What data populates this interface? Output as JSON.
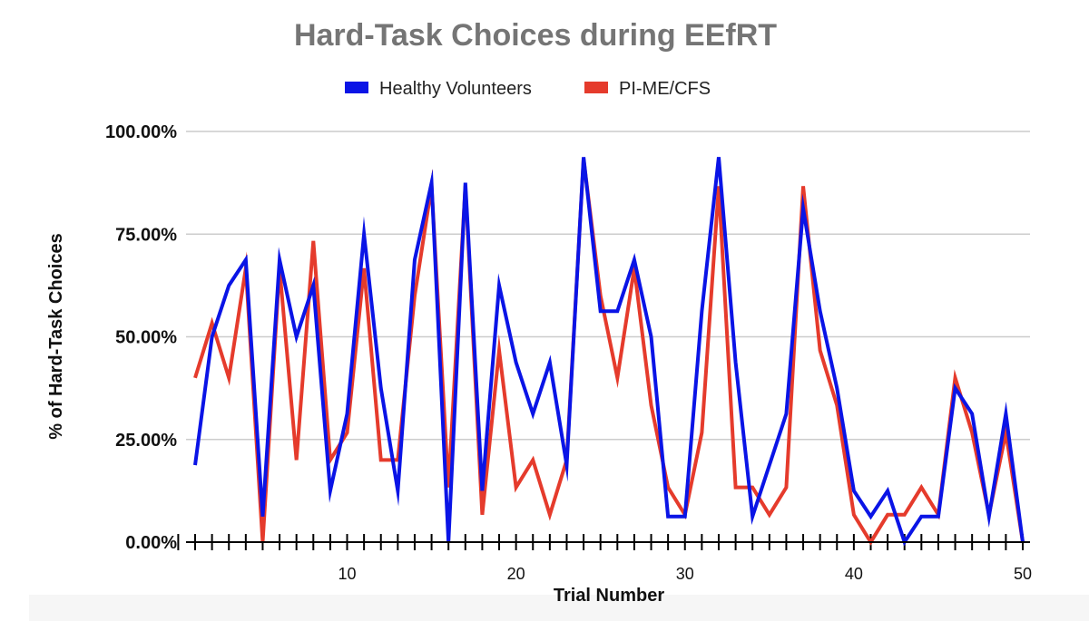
{
  "chart_data": {
    "type": "line",
    "title": "Hard-Task Choices during EEfRT",
    "xlabel": "Trial Number",
    "ylabel": "% of Hard-Task Choices",
    "xlim": [
      1,
      50
    ],
    "ylim": [
      0,
      100
    ],
    "x_ticks": [
      10,
      20,
      30,
      40,
      50
    ],
    "y_ticks": [
      "0.00%",
      "25.00%",
      "50.00%",
      "75.00%",
      "100.00%"
    ],
    "y_tick_values": [
      0,
      25,
      50,
      75,
      100
    ],
    "grid": true,
    "legend_position": "top-center",
    "x": [
      1,
      2,
      3,
      4,
      5,
      6,
      7,
      8,
      9,
      10,
      11,
      12,
      13,
      14,
      15,
      16,
      17,
      18,
      19,
      20,
      21,
      22,
      23,
      24,
      25,
      26,
      27,
      28,
      29,
      30,
      31,
      32,
      33,
      34,
      35,
      36,
      37,
      38,
      39,
      40,
      41,
      42,
      43,
      44,
      45,
      46,
      47,
      48,
      49,
      50
    ],
    "series": [
      {
        "name": "Healthy Volunteers",
        "color": "#0a14e6",
        "values": [
          18.75,
          50,
          62.5,
          68.75,
          6.25,
          68.75,
          50,
          62.5,
          12.5,
          31.25,
          75,
          37.5,
          12.5,
          68.75,
          87.5,
          0,
          87.5,
          12.5,
          62.5,
          43.75,
          31.25,
          43.75,
          18.75,
          93.75,
          56.25,
          56.25,
          68.75,
          50,
          6.25,
          6.25,
          56.25,
          93.75,
          43.75,
          6.25,
          18.75,
          31.25,
          81.25,
          56.25,
          37.5,
          12.5,
          6.25,
          12.5,
          0,
          6.25,
          6.25,
          37.5,
          31.25,
          6.25,
          31.25,
          0
        ]
      },
      {
        "name": "PI-ME/CFS",
        "color": "#e53b2c",
        "values": [
          40,
          53.33,
          40,
          66.67,
          0,
          66.67,
          20,
          73.33,
          20,
          26.67,
          66.67,
          20,
          20,
          60,
          86.67,
          13.33,
          86.67,
          6.67,
          46.67,
          13.33,
          20,
          6.67,
          20,
          93.33,
          60,
          40,
          66.67,
          33.33,
          13.33,
          6.67,
          26.67,
          86.67,
          13.33,
          13.33,
          6.67,
          13.33,
          86.67,
          46.67,
          33.33,
          6.67,
          0,
          6.67,
          6.67,
          13.33,
          6.67,
          40,
          26.67,
          6.67,
          26.67,
          0
        ]
      }
    ]
  }
}
